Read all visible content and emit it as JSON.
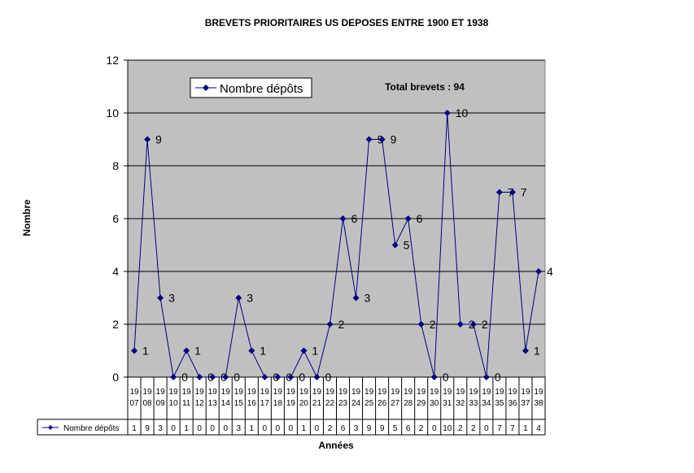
{
  "chart_data": {
    "type": "line",
    "title": "BREVETS PRIORITAIRES US DEPOSES ENTRE 1900 ET 1938",
    "xlabel": "Années",
    "ylabel": "Nombre",
    "annotation": "Total brevets : 94",
    "ylim": [
      0,
      12
    ],
    "yticks": [
      0,
      2,
      4,
      6,
      8,
      10,
      12
    ],
    "grid": true,
    "legend_position": "top-left",
    "categories": [
      "1907",
      "1908",
      "1909",
      "1910",
      "1911",
      "1912",
      "1913",
      "1914",
      "1915",
      "1916",
      "1917",
      "1918",
      "1919",
      "1920",
      "1921",
      "1922",
      "1923",
      "1924",
      "1925",
      "1926",
      "1927",
      "1928",
      "1929",
      "1930",
      "1931",
      "1932",
      "1933",
      "1934",
      "1935",
      "1936",
      "1937",
      "1938"
    ],
    "series": [
      {
        "name": "Nombre dépôts",
        "color": "#00007f",
        "values": [
          1,
          9,
          3,
          0,
          1,
          0,
          0,
          0,
          3,
          1,
          0,
          0,
          0,
          1,
          0,
          2,
          6,
          3,
          9,
          9,
          5,
          6,
          2,
          0,
          10,
          2,
          2,
          0,
          7,
          7,
          1,
          4
        ]
      }
    ],
    "data_table": true
  },
  "colors": {
    "plot_background": "#c0c0c0",
    "gridline": "#000000",
    "series": "#00007f"
  }
}
